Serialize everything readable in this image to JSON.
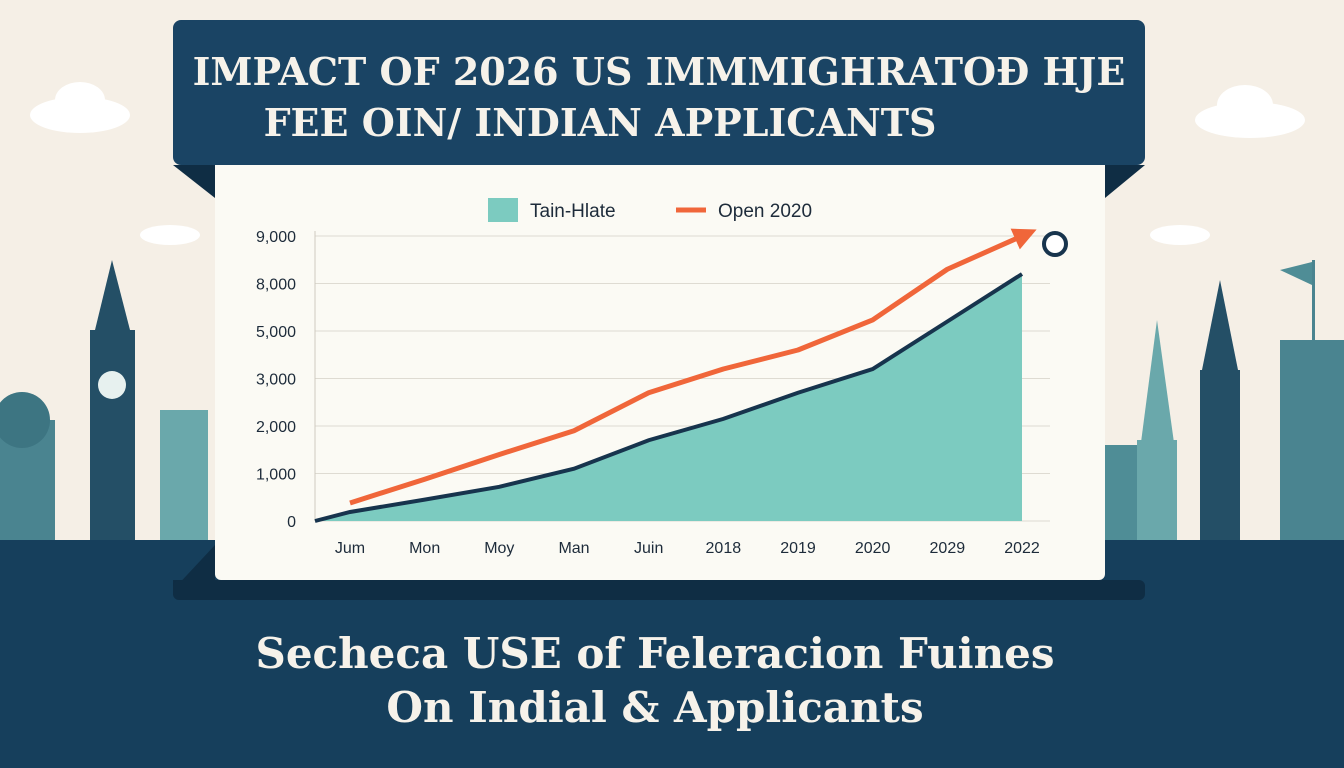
{
  "chart_data": {
    "type": "area-line",
    "title": [
      "IMPACT OF 2026 US IMMMIGHRATOÐ HJE",
      "FEE OIN/ INDIAN APPLICANTS"
    ],
    "subtitle": [
      "Secheca USE of Feleracion Fuines",
      "On Indial & Applicants"
    ],
    "categories": [
      "Jum",
      "Mon",
      "Moy",
      "Man",
      "Juin",
      "2018",
      "2019",
      "2020",
      "2029",
      "2022"
    ],
    "series": [
      {
        "name": "Tain-Hlate",
        "color": "#7ccbc0",
        "kind": "area",
        "values": [
          190,
          450,
          720,
          1100,
          1700,
          2150,
          2700,
          3400,
          5600,
          8200
        ]
      },
      {
        "name": "Open 2020",
        "color": "#f0663a",
        "kind": "line",
        "values": [
          380,
          880,
          1400,
          1900,
          2700,
          3400,
          4200,
          5700,
          8300,
          9000
        ]
      }
    ],
    "ylim": [
      0,
      9000
    ],
    "yticks": [
      {
        "value": 0,
        "label": "0"
      },
      {
        "value": 1000,
        "label": "1,000"
      },
      {
        "value": 2000,
        "label": "2,000"
      },
      {
        "value": 3000,
        "label": "3,000"
      },
      {
        "value": 5000,
        "label": "5,000"
      },
      {
        "value": 8000,
        "label": "8,000"
      },
      {
        "value": 9000,
        "label": "9,000"
      }
    ],
    "grid": true
  }
}
